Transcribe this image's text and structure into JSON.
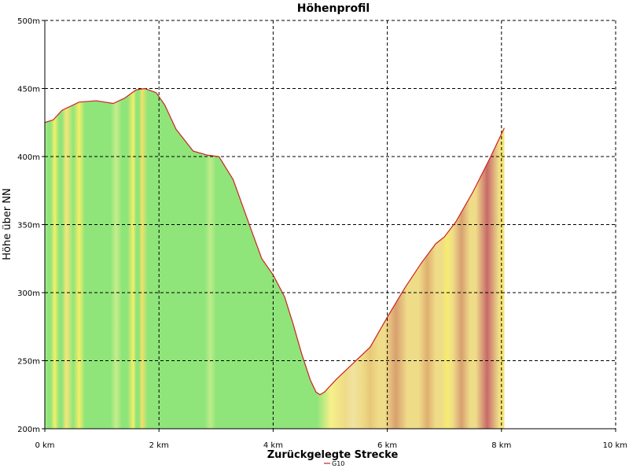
{
  "chart_data": {
    "type": "area",
    "title": "Höhenprofil",
    "xlabel": "Zurückgelegte Strecke",
    "ylabel": "Höhe über NN",
    "xlim": [
      0,
      10
    ],
    "ylim": [
      200,
      500
    ],
    "x_ticks": [
      {
        "value": 0,
        "label": "0 km"
      },
      {
        "value": 2,
        "label": "2 km"
      },
      {
        "value": 4,
        "label": "4 km"
      },
      {
        "value": 6,
        "label": "6 km"
      },
      {
        "value": 8,
        "label": "8 km"
      },
      {
        "value": 10,
        "label": "10 km"
      }
    ],
    "y_ticks": [
      {
        "value": 200,
        "label": "200m"
      },
      {
        "value": 250,
        "label": "250m"
      },
      {
        "value": 300,
        "label": "300m"
      },
      {
        "value": 350,
        "label": "350m"
      },
      {
        "value": 400,
        "label": "400m"
      },
      {
        "value": 450,
        "label": "450m"
      },
      {
        "value": 500,
        "label": "500m"
      }
    ],
    "grid": true,
    "legend_position": "bottom-center",
    "series": [
      {
        "name": "G10",
        "color": "#cc2222",
        "x": [
          0,
          0.15,
          0.3,
          0.6,
          0.9,
          1.2,
          1.4,
          1.6,
          1.75,
          1.95,
          2.1,
          2.3,
          2.6,
          2.85,
          3.05,
          3.3,
          3.6,
          3.8,
          4.0,
          4.2,
          4.35,
          4.5,
          4.65,
          4.75,
          4.82,
          4.9,
          5.1,
          5.4,
          5.7,
          6.0,
          6.3,
          6.6,
          6.85,
          7.0,
          7.2,
          7.5,
          7.8,
          8.05
        ],
        "y": [
          425,
          427,
          434,
          440,
          441,
          439,
          443,
          449,
          450,
          447,
          438,
          420,
          404,
          401,
          400,
          383,
          348,
          325,
          313,
          297,
          277,
          255,
          236,
          227,
          225,
          227,
          236,
          248,
          260,
          282,
          303,
          322,
          336,
          341,
          352,
          374,
          399,
          421
        ]
      }
    ],
    "gradient_bands": [
      {
        "x_start": 0,
        "x_end": 0.05,
        "color": "#a3e98a"
      },
      {
        "x_start": 0.1,
        "x_end": 0.25,
        "color": "#f5ee6a"
      },
      {
        "x_start": 0.3,
        "x_end": 0.45,
        "color": "#f6e67a"
      },
      {
        "x_start": 0.55,
        "x_end": 0.65,
        "color": "#f5ee6a"
      },
      {
        "x_start": 1.2,
        "x_end": 1.3,
        "color": "#c8ec8b"
      },
      {
        "x_start": 1.5,
        "x_end": 1.6,
        "color": "#f5ee6a"
      },
      {
        "x_start": 1.65,
        "x_end": 1.75,
        "color": "#f6e067"
      },
      {
        "x_start": 2.85,
        "x_end": 2.95,
        "color": "#bfeb8a"
      },
      {
        "x_start": 4.82,
        "x_end": 5.2,
        "color": "#f6f08a"
      },
      {
        "x_start": 5.3,
        "x_end": 5.5,
        "color": "#f0e2a0"
      },
      {
        "x_start": 5.6,
        "x_end": 5.8,
        "color": "#e8c87a"
      },
      {
        "x_start": 6.0,
        "x_end": 6.3,
        "color": "#d9a070"
      },
      {
        "x_start": 6.6,
        "x_end": 6.8,
        "color": "#dfb070"
      },
      {
        "x_start": 7.0,
        "x_end": 7.1,
        "color": "#f6ec70"
      },
      {
        "x_start": 7.2,
        "x_end": 7.4,
        "color": "#d8a070"
      },
      {
        "x_start": 7.6,
        "x_end": 7.9,
        "color": "#c86a6a"
      },
      {
        "x_start": 8.0,
        "x_end": 8.05,
        "color": "#f6e870"
      }
    ]
  }
}
